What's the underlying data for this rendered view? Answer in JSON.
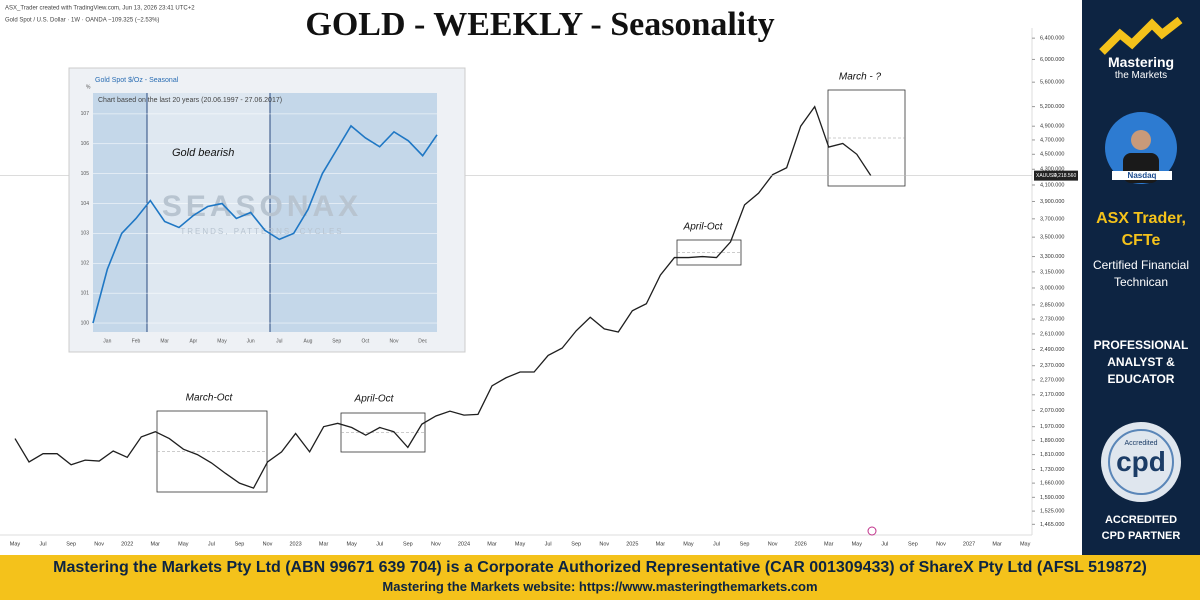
{
  "header": {
    "title": "GOLD - WEEKLY - Seasonality",
    "credit": "ASX_Trader created with TradingView.com, Jun 13, 2026 23:41 UTC+2",
    "symbol_line": "Gold Spot / U.S. Dollar · 1W · OANDA  −109.325 (−2.53%)"
  },
  "sidebar": {
    "brand": "Mastering",
    "brand_sub": "the Markets",
    "name": "ASX Trader,",
    "credential": "CFTe",
    "role_1": "Certified Financial",
    "role_2": "Technican",
    "badge_1": "PROFESSIONAL",
    "badge_2": "ANALYST &",
    "badge_3": "EDUCATOR",
    "cpd_top": "Accredited",
    "cpd": "cpd",
    "partner_1": "ACCREDITED",
    "partner_2": "CPD PARTNER",
    "nasdaq": "Nasdaq"
  },
  "footer": {
    "line_1": "Mastering the Markets Pty Ltd (ABN 99671 639 704) is a Corporate Authorized Representative (CAR 001309433) of ShareX Pty Ltd (AFSL 519872)",
    "line_2": "Mastering the Markets website: https://www.masteringthemarkets.com"
  },
  "chart_data": [
    {
      "type": "line",
      "yscale": "log",
      "color": "#1f1f1f",
      "last_price": {
        "symbol": "XAUUSD",
        "label": "4,218.560"
      },
      "categories": [
        "May",
        null,
        "Jul",
        null,
        "Sep",
        null,
        "Nov",
        null,
        "2022",
        null,
        "Mar",
        null,
        "May",
        null,
        "Jul",
        null,
        "Sep",
        null,
        "Nov",
        null,
        "2023",
        null,
        "Mar",
        null,
        "May",
        null,
        "Jul",
        null,
        "Sep",
        null,
        "Nov",
        null,
        "2024",
        null,
        "Mar",
        null,
        "May",
        null,
        "Jul",
        null,
        "Sep",
        null,
        "Nov",
        null,
        "2025",
        null,
        "Mar",
        null,
        "May",
        null,
        "Jul",
        null,
        "Sep",
        null,
        "Nov",
        null,
        "2026",
        null,
        "Mar",
        null,
        "May",
        null,
        "Jul",
        null,
        "Sep",
        null,
        "Nov",
        null,
        "2027",
        null,
        "Mar",
        null,
        "May"
      ],
      "series": [
        {
          "name": "XAUUSD",
          "values": [
            1900,
            1770,
            1815,
            1815,
            1755,
            1780,
            1775,
            1830,
            1795,
            1910,
            1940,
            1900,
            1840,
            1810,
            1765,
            1710,
            1660,
            1635,
            1770,
            1825,
            1930,
            1825,
            1970,
            1990,
            1965,
            1920,
            1965,
            1940,
            1850,
            1985,
            2035,
            2065,
            2040,
            2045,
            2230,
            2285,
            2325,
            2325,
            2445,
            2500,
            2635,
            2745,
            2650,
            2625,
            2800,
            2860,
            3120,
            3290,
            3290,
            3300,
            3290,
            3450,
            3860,
            4000,
            4230,
            4320,
            4900,
            5200,
            4600,
            4650,
            4500,
            4218,
            null,
            null,
            null,
            null,
            null,
            null,
            null,
            null,
            null,
            null,
            null
          ]
        }
      ],
      "ylim": [
        1440,
        6600
      ],
      "yticks": [
        {
          "value": 6400,
          "label": "6,400.000"
        },
        {
          "value": 6000,
          "label": "6,000.000"
        },
        {
          "value": 5600,
          "label": "5,600.000"
        },
        {
          "value": 5200,
          "label": "5,200.000"
        },
        {
          "value": 4900,
          "label": "4,900.000"
        },
        {
          "value": 4700,
          "label": "4,700.000"
        },
        {
          "value": 4500,
          "label": "4,500.000"
        },
        {
          "value": 4300,
          "label": "4,300.000"
        },
        {
          "value": 4100,
          "label": "4,100.000"
        },
        {
          "value": 3900,
          "label": "3,900.000"
        },
        {
          "value": 3700,
          "label": "3,700.000"
        },
        {
          "value": 3500,
          "label": "3,500.000"
        },
        {
          "value": 3300,
          "label": "3,300.000"
        },
        {
          "value": 3150,
          "label": "3,150.000"
        },
        {
          "value": 3000,
          "label": "3,000.000"
        },
        {
          "value": 2850,
          "label": "2,850.000"
        },
        {
          "value": 2730,
          "label": "2,730.000"
        },
        {
          "value": 2610,
          "label": "2,610.000"
        },
        {
          "value": 2490,
          "label": "2,490.000"
        },
        {
          "value": 2370,
          "label": "2,370.000"
        },
        {
          "value": 2270,
          "label": "2,270.000"
        },
        {
          "value": 2170,
          "label": "2,170.000"
        },
        {
          "value": 2070,
          "label": "2,070.000"
        },
        {
          "value": 1970,
          "label": "1,970.000"
        },
        {
          "value": 1890,
          "label": "1,890.000"
        },
        {
          "value": 1810,
          "label": "1,810.000"
        },
        {
          "value": 1730,
          "label": "1,730.000"
        },
        {
          "value": 1660,
          "label": "1,660.000"
        },
        {
          "value": 1590,
          "label": "1,590.000"
        },
        {
          "value": 1525,
          "label": "1,525.000"
        },
        {
          "value": 1465,
          "label": "1,465.000"
        }
      ],
      "annotations": [
        "March-Oct",
        "April-Oct",
        "April-Oct",
        "March - ?"
      ]
    },
    {
      "type": "line",
      "title": "Gold Spot  $/Oz - Seasonal",
      "subtitle": "Chart based on the last 20 years (20.06.1997 - 27.06.2017)",
      "annotation": "Gold bearish",
      "watermark": "SEASONAX",
      "watermark_sub": "TRENDS, PATTERNS, CYCLES",
      "y_unit": "%",
      "color": "#1f77c4",
      "months": [
        "Jan",
        "Feb",
        "Mar",
        "Apr",
        "May",
        "Jun",
        "Jul",
        "Aug",
        "Sep",
        "Oct",
        "Nov",
        "Dec"
      ],
      "values": [
        100,
        101.8,
        103,
        103.5,
        104.1,
        103.4,
        103.2,
        103.6,
        103.9,
        104.0,
        103.5,
        103.7,
        103.1,
        102.8,
        103.0,
        103.8,
        105.0,
        105.8,
        106.6,
        106.2,
        105.9,
        106.4,
        106.1,
        105.6,
        106.3
      ],
      "ylim": [
        99.7,
        107.7
      ],
      "yticks": [
        100,
        101,
        102,
        103,
        104,
        105,
        106,
        107
      ]
    }
  ]
}
